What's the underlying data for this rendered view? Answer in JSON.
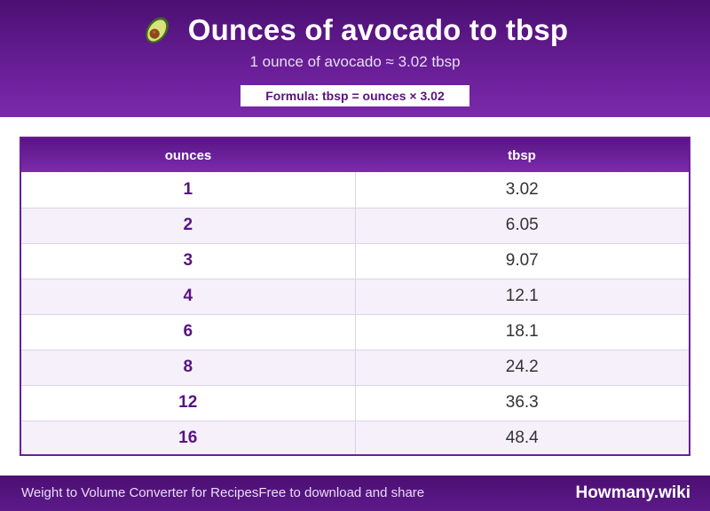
{
  "header": {
    "icon": "avocado-icon",
    "title": "Ounces of avocado to tbsp",
    "subtitle": "1 ounce of avocado ≈ 3.02 tbsp",
    "formula": "Formula: tbsp = ounces × 3.02"
  },
  "table": {
    "columns": [
      "ounces",
      "tbsp"
    ],
    "rows": [
      {
        "ounces": "1",
        "tbsp": "3.02"
      },
      {
        "ounces": "2",
        "tbsp": "6.05"
      },
      {
        "ounces": "3",
        "tbsp": "9.07"
      },
      {
        "ounces": "4",
        "tbsp": "12.1"
      },
      {
        "ounces": "6",
        "tbsp": "18.1"
      },
      {
        "ounces": "8",
        "tbsp": "24.2"
      },
      {
        "ounces": "12",
        "tbsp": "36.3"
      },
      {
        "ounces": "16",
        "tbsp": "48.4"
      }
    ]
  },
  "footer": {
    "left_text": "Weight to Volume Converter for RecipesFree to download and share",
    "brand": "Howmany.wiki"
  },
  "colors": {
    "accent": "#6a1f98",
    "header_dark": "#4b0f72",
    "row_alt": "#f5f0fa"
  }
}
